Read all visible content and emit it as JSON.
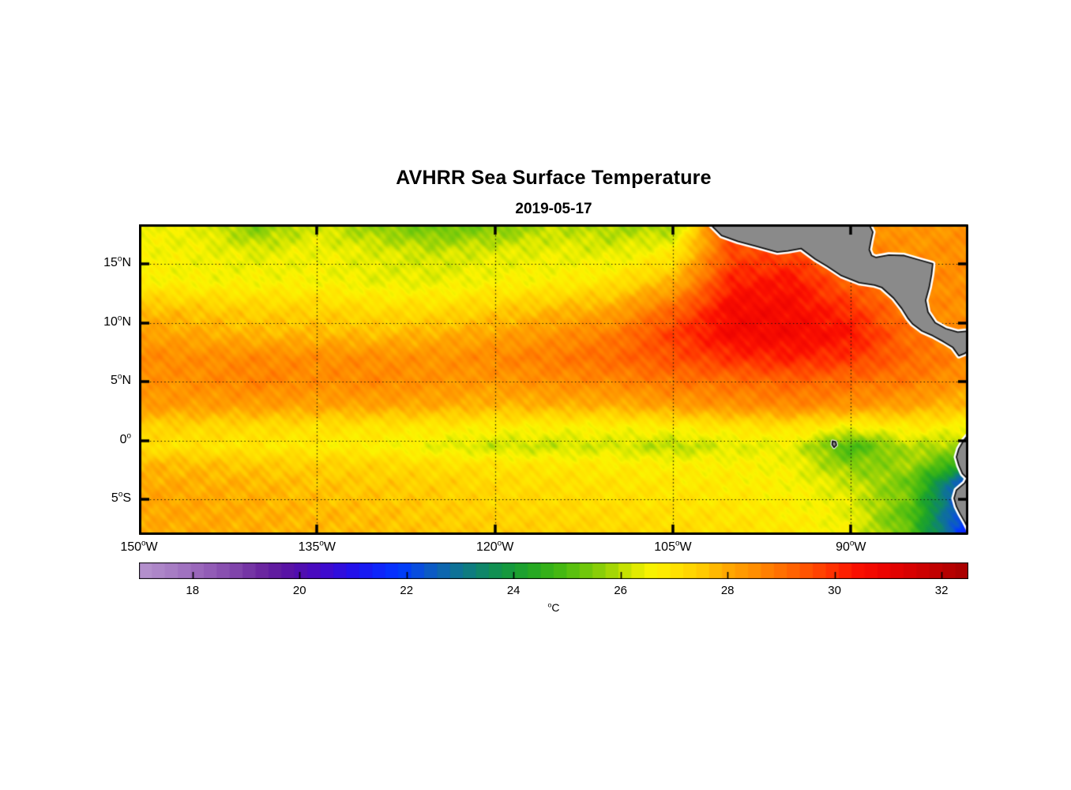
{
  "chart_data": {
    "type": "heatmap",
    "title": "AVHRR Sea Surface Temperature",
    "subtitle": "2019-05-17",
    "axes": {
      "lon_range": [
        -150,
        -80.1
      ],
      "lat_range": [
        -8,
        18.35
      ],
      "grid": "dotted",
      "degree_symbol": "o",
      "xticks": [
        {
          "lon": -150,
          "num": "150",
          "hemi": "W"
        },
        {
          "lon": -135,
          "num": "135",
          "hemi": "W"
        },
        {
          "lon": -120,
          "num": "120",
          "hemi": "W"
        },
        {
          "lon": -105,
          "num": "105",
          "hemi": "W"
        },
        {
          "lon": -90,
          "num": "90",
          "hemi": "W"
        }
      ],
      "yticks": [
        {
          "lat": 15,
          "num": "15",
          "hemi": "N"
        },
        {
          "lat": 10,
          "num": "10",
          "hemi": "N"
        },
        {
          "lat": 5,
          "num": "5",
          "hemi": "N"
        },
        {
          "lat": 0,
          "num": "0",
          "hemi": ""
        },
        {
          "lat": -5,
          "num": "5",
          "hemi": "S"
        }
      ]
    },
    "colorbar": {
      "range": [
        17,
        32.5
      ],
      "segments": 64,
      "ticks": [
        18,
        20,
        22,
        24,
        26,
        28,
        30,
        32
      ],
      "unit_sup": "o",
      "unit_text": "C"
    },
    "colormap": [
      [
        17.0,
        "#b794cf"
      ],
      [
        17.6,
        "#a87ec5"
      ],
      [
        18.2,
        "#9763b9"
      ],
      [
        18.8,
        "#8146ac"
      ],
      [
        19.4,
        "#67219e"
      ],
      [
        19.9,
        "#5510a8"
      ],
      [
        20.4,
        "#4509c8"
      ],
      [
        21.0,
        "#2310ea"
      ],
      [
        21.5,
        "#0e26fb"
      ],
      [
        21.9,
        "#0039ff"
      ],
      [
        22.3,
        "#0b53d5"
      ],
      [
        22.8,
        "#0e6ca4"
      ],
      [
        23.3,
        "#0f8276"
      ],
      [
        23.8,
        "#139645"
      ],
      [
        24.3,
        "#20a626"
      ],
      [
        24.8,
        "#40b714"
      ],
      [
        25.3,
        "#6bc60c"
      ],
      [
        25.8,
        "#a0d506"
      ],
      [
        26.2,
        "#d8e800"
      ],
      [
        26.6,
        "#fbf400"
      ],
      [
        27.0,
        "#ffe400"
      ],
      [
        27.5,
        "#ffcd00"
      ],
      [
        28.0,
        "#ffa800"
      ],
      [
        28.5,
        "#ff8e00"
      ],
      [
        29.0,
        "#ff7000"
      ],
      [
        29.5,
        "#ff5200"
      ],
      [
        30.0,
        "#ff2e00"
      ],
      [
        30.4,
        "#fb1000"
      ],
      [
        30.9,
        "#ee0400"
      ],
      [
        31.4,
        "#d90000"
      ],
      [
        32.0,
        "#bd0000"
      ],
      [
        32.5,
        "#a60000"
      ]
    ],
    "grid_lons": [
      -150,
      -145,
      -140,
      -135,
      -130,
      -125,
      -120,
      -115,
      -110,
      -105,
      -100,
      -95,
      -90,
      -85,
      -80
    ],
    "grid_lats": [
      18.3,
      16,
      13.5,
      11,
      9,
      7,
      5,
      3,
      1.2,
      -0.5,
      -2,
      -3.5,
      -5,
      -6.5,
      -8
    ],
    "sst_values": [
      [
        26.5,
        26.4,
        25.4,
        26.2,
        25.6,
        25.2,
        25.4,
        26.0,
        25.8,
        25.7,
        30.0,
        29.2,
        28.6,
        28.3,
        28.4
      ],
      [
        26.6,
        26.5,
        26.3,
        26.5,
        26.3,
        26.1,
        26.3,
        26.4,
        26.3,
        26.8,
        29.6,
        29.6,
        28.8,
        28.4,
        28.5
      ],
      [
        26.7,
        26.6,
        26.6,
        26.6,
        26.4,
        26.4,
        26.6,
        26.7,
        27.0,
        27.8,
        30.2,
        30.4,
        29.2,
        28.6,
        28.5
      ],
      [
        27.8,
        27.6,
        27.4,
        27.4,
        27.2,
        27.2,
        27.5,
        27.8,
        28.1,
        29.2,
        30.7,
        30.6,
        30.0,
        28.7,
        28.4
      ],
      [
        28.2,
        28.0,
        27.8,
        27.8,
        27.7,
        27.9,
        28.1,
        28.4,
        28.8,
        29.8,
        30.7,
        30.7,
        30.4,
        29.0,
        28.5
      ],
      [
        28.6,
        28.5,
        28.6,
        28.5,
        28.5,
        28.4,
        28.6,
        28.8,
        29.1,
        29.5,
        30.0,
        30.2,
        29.9,
        29.1,
        28.6
      ],
      [
        28.4,
        28.5,
        28.7,
        28.5,
        28.6,
        28.4,
        28.3,
        28.5,
        28.6,
        28.9,
        29.0,
        29.2,
        29.0,
        28.8,
        28.3
      ],
      [
        28.3,
        28.2,
        28.2,
        28.1,
        28.1,
        28.0,
        27.8,
        27.9,
        27.9,
        28.2,
        28.4,
        28.6,
        28.4,
        28.1,
        27.7
      ],
      [
        27.4,
        27.3,
        27.2,
        27.1,
        27.0,
        26.9,
        26.8,
        26.7,
        26.7,
        26.8,
        27.0,
        27.1,
        26.6,
        26.9,
        26.6
      ],
      [
        27.1,
        27.0,
        26.9,
        26.8,
        26.7,
        26.4,
        26.1,
        26.1,
        26.2,
        25.9,
        26.3,
        26.4,
        24.8,
        26.0,
        25.7
      ],
      [
        27.8,
        27.7,
        27.5,
        27.4,
        27.3,
        27.1,
        27.0,
        26.9,
        26.8,
        26.7,
        26.7,
        26.5,
        25.5,
        25.8,
        24.4
      ],
      [
        28.0,
        27.9,
        27.8,
        27.6,
        27.5,
        27.4,
        27.2,
        27.1,
        27.0,
        26.9,
        26.8,
        26.6,
        26.1,
        25.3,
        22.0
      ],
      [
        28.1,
        28.0,
        27.9,
        27.7,
        27.6,
        27.5,
        27.3,
        27.2,
        27.1,
        27.0,
        26.9,
        26.7,
        26.3,
        25.3,
        21.4
      ],
      [
        28.0,
        28.0,
        27.9,
        27.8,
        27.7,
        27.5,
        27.4,
        27.3,
        27.2,
        27.1,
        27.0,
        26.8,
        26.4,
        25.0,
        21.6
      ],
      [
        27.9,
        28.0,
        27.9,
        27.8,
        27.7,
        27.6,
        27.5,
        27.4,
        27.3,
        27.2,
        27.1,
        26.9,
        26.5,
        25.2,
        21.2
      ]
    ],
    "land": {
      "fill": "#8a8a8a",
      "outline": "#111111",
      "fringe": "#ffffff",
      "polygons": {
        "central_america": [
          [
            -101.9,
            18.4
          ],
          [
            -100.9,
            17.4
          ],
          [
            -99.5,
            16.9
          ],
          [
            -98.0,
            16.5
          ],
          [
            -96.2,
            16.0
          ],
          [
            -95.3,
            16.1
          ],
          [
            -94.2,
            16.3
          ],
          [
            -93.0,
            15.4
          ],
          [
            -92.0,
            14.8
          ],
          [
            -90.8,
            14.0
          ],
          [
            -89.3,
            13.4
          ],
          [
            -88.0,
            13.2
          ],
          [
            -87.4,
            13.0
          ],
          [
            -86.4,
            12.1
          ],
          [
            -85.7,
            11.2
          ],
          [
            -85.2,
            10.4
          ],
          [
            -84.8,
            9.9
          ],
          [
            -84.0,
            9.3
          ],
          [
            -83.1,
            8.9
          ],
          [
            -82.2,
            8.4
          ],
          [
            -81.4,
            7.9
          ],
          [
            -80.9,
            7.2
          ],
          [
            -80.4,
            7.4
          ],
          [
            -80.0,
            7.7
          ],
          [
            -80.0,
            9.3
          ],
          [
            -81.0,
            9.2
          ],
          [
            -82.0,
            9.5
          ],
          [
            -82.9,
            10.0
          ],
          [
            -83.5,
            10.9
          ],
          [
            -83.7,
            11.9
          ],
          [
            -83.4,
            13.0
          ],
          [
            -83.2,
            14.1
          ],
          [
            -83.1,
            15.0
          ],
          [
            -84.3,
            15.35
          ],
          [
            -85.5,
            15.7
          ],
          [
            -86.8,
            15.75
          ],
          [
            -87.9,
            15.55
          ],
          [
            -88.25,
            15.7
          ],
          [
            -88.45,
            16.2
          ],
          [
            -88.3,
            17.0
          ],
          [
            -88.15,
            17.7
          ],
          [
            -88.5,
            18.4
          ]
        ],
        "south_america": [
          [
            -80.0,
            0.6
          ],
          [
            -80.5,
            0.0
          ],
          [
            -80.9,
            -0.7
          ],
          [
            -81.1,
            -1.4
          ],
          [
            -80.9,
            -2.1
          ],
          [
            -80.6,
            -2.8
          ],
          [
            -80.2,
            -3.2
          ],
          [
            -80.4,
            -3.6
          ],
          [
            -81.1,
            -4.2
          ],
          [
            -81.3,
            -4.9
          ],
          [
            -81.1,
            -5.6
          ],
          [
            -80.8,
            -6.2
          ],
          [
            -80.4,
            -6.9
          ],
          [
            -80.1,
            -7.5
          ],
          [
            -80.0,
            -8.1
          ]
        ],
        "galapagos": [
          [
            -91.55,
            -0.05
          ],
          [
            -91.28,
            -0.12
          ],
          [
            -91.22,
            -0.38
          ],
          [
            -91.42,
            -0.58
          ],
          [
            -91.58,
            -0.34
          ]
        ]
      }
    }
  }
}
